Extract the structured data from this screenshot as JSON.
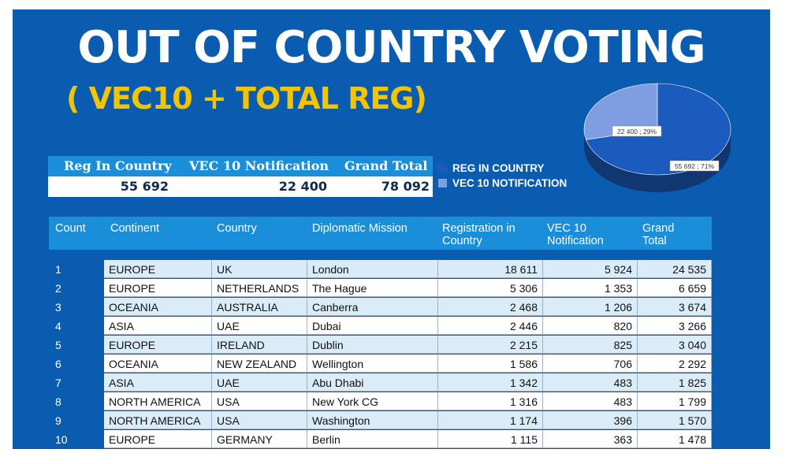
{
  "title": "OUT OF COUNTRY VOTING",
  "subtitle": "( VEC10 + TOTAL REG)",
  "summary": {
    "headers": [
      "Reg In Country",
      "VEC 10 Notification",
      "Grand Total"
    ],
    "values": [
      "55 692",
      "22 400",
      "78 092"
    ]
  },
  "colors": {
    "background": "#0a5cb0",
    "header": "#1b8ed9",
    "accent": "#f5c400",
    "reg_in_country": "#1a5bbd",
    "vec10": "#7f9de0"
  },
  "chart_data": {
    "type": "pie",
    "slices": [
      {
        "label": "REG IN COUNTRY",
        "value": 55692,
        "percent": 71,
        "data_label": "55 692 ; 71%",
        "color": "#1a5bbd"
      },
      {
        "label": "VEC 10 NOTIFICATION",
        "value": 22400,
        "percent": 29,
        "data_label": "22 400 ; 29%",
        "color": "#7f9de0"
      }
    ],
    "legend": [
      "REG IN COUNTRY",
      "VEC 10 NOTIFICATION"
    ],
    "legend_position": "left",
    "style": "3d"
  },
  "table": {
    "headers": [
      "Count",
      "Continent",
      "Country",
      "Diplomatic Mission",
      "Registration in Country",
      "VEC 10 Notification",
      "Grand Total"
    ],
    "rows": [
      [
        "1",
        "EUROPE",
        "UK",
        "London",
        "18 611",
        "5 924",
        "24 535"
      ],
      [
        "2",
        "EUROPE",
        "NETHERLANDS",
        "The Hague",
        "5 306",
        "1 353",
        "6 659"
      ],
      [
        "3",
        "OCEANIA",
        "AUSTRALIA",
        "Canberra",
        "2 468",
        "1 206",
        "3 674"
      ],
      [
        "4",
        "ASIA",
        "UAE",
        "Dubai",
        "2 446",
        "820",
        "3 266"
      ],
      [
        "5",
        "EUROPE",
        "IRELAND",
        "Dublin",
        "2 215",
        "825",
        "3 040"
      ],
      [
        "6",
        "OCEANIA",
        "NEW ZEALAND",
        "Wellington",
        "1 586",
        "706",
        "2 292"
      ],
      [
        "7",
        "ASIA",
        "UAE",
        "Abu Dhabi",
        "1 342",
        "483",
        "1 825"
      ],
      [
        "8",
        "NORTH AMERICA",
        "USA",
        "New York CG",
        "1 316",
        "483",
        "1 799"
      ],
      [
        "9",
        "NORTH AMERICA",
        "USA",
        "Washington",
        "1 174",
        "396",
        "1 570"
      ],
      [
        "10",
        "EUROPE",
        "GERMANY",
        "Berlin",
        "1 115",
        "363",
        "1 478"
      ]
    ]
  }
}
